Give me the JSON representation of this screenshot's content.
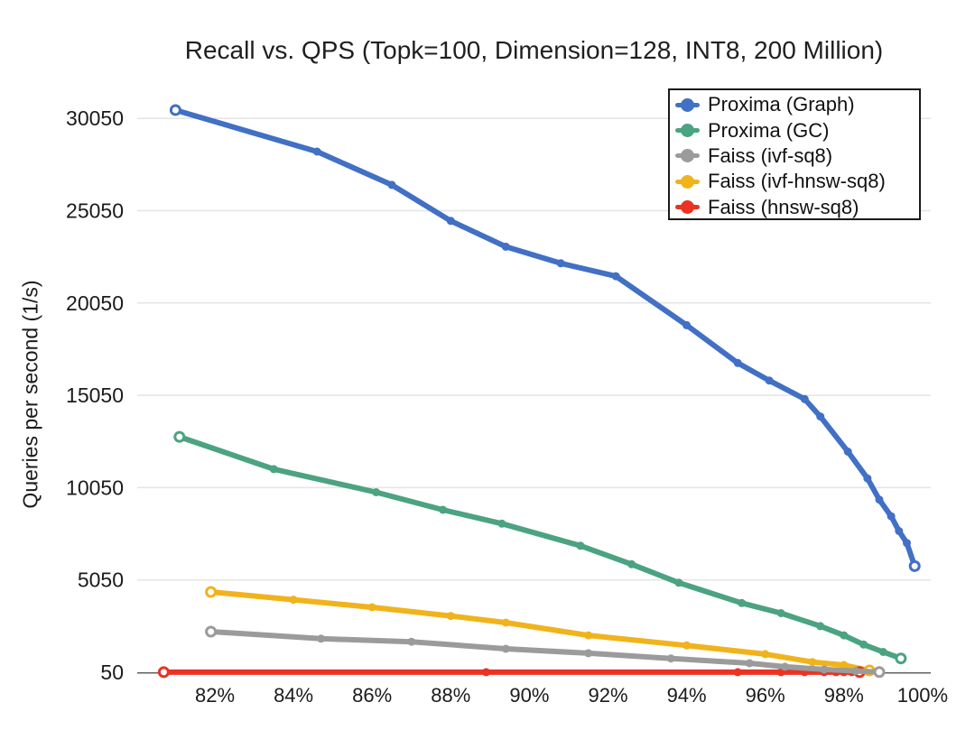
{
  "chart_data": {
    "type": "line",
    "title": "Recall vs. QPS (Topk=100, Dimension=128, INT8, 200 Million)",
    "xlabel": "",
    "ylabel": "Queries per second (1/s)",
    "x_tick_labels": [
      "82%",
      "84%",
      "86%",
      "88%",
      "90%",
      "92%",
      "94%",
      "96%",
      "98%",
      "100%"
    ],
    "x_tick_values": [
      82,
      84,
      86,
      88,
      90,
      92,
      94,
      96,
      98,
      100
    ],
    "y_tick_labels": [
      "50",
      "5050",
      "10050",
      "15050",
      "20050",
      "25050",
      "30050"
    ],
    "y_tick_values": [
      50,
      5050,
      10050,
      15050,
      20050,
      25050,
      30050
    ],
    "xlim": [
      80.1,
      100.2
    ],
    "ylim": [
      50,
      32050
    ],
    "grid": "horizontal",
    "legend_position": "top-right",
    "colors": {
      "grid": "#E4E4E4",
      "axis": "#606060",
      "text": "#1B1B1B"
    },
    "series": [
      {
        "name": "Proxima (Graph)",
        "color": "#4170C4",
        "points": [
          [
            81.0,
            30500
          ],
          [
            84.6,
            28250
          ],
          [
            86.5,
            26450
          ],
          [
            88.0,
            24500
          ],
          [
            89.4,
            23100
          ],
          [
            90.8,
            22200
          ],
          [
            92.2,
            21500
          ],
          [
            94.0,
            18850
          ],
          [
            95.3,
            16800
          ],
          [
            96.1,
            15850
          ],
          [
            97.0,
            14850
          ],
          [
            97.4,
            13900
          ],
          [
            98.1,
            12000
          ],
          [
            98.6,
            10550
          ],
          [
            98.9,
            9400
          ],
          [
            99.2,
            8500
          ],
          [
            99.4,
            7700
          ],
          [
            99.6,
            7050
          ],
          [
            99.8,
            5800
          ]
        ]
      },
      {
        "name": "Proxima (GC)",
        "color": "#4BA381",
        "points": [
          [
            81.1,
            12800
          ],
          [
            83.5,
            11050
          ],
          [
            86.1,
            9800
          ],
          [
            87.8,
            8850
          ],
          [
            89.3,
            8100
          ],
          [
            91.3,
            6900
          ],
          [
            92.6,
            5900
          ],
          [
            93.8,
            4900
          ],
          [
            95.4,
            3800
          ],
          [
            96.4,
            3250
          ],
          [
            97.4,
            2550
          ],
          [
            98.0,
            2050
          ],
          [
            98.5,
            1550
          ],
          [
            99.0,
            1150
          ],
          [
            99.45,
            800
          ]
        ]
      },
      {
        "name": "Faiss (ivf-sq8)",
        "color": "#9B9B9B",
        "points": [
          [
            81.9,
            2250
          ],
          [
            84.7,
            1870
          ],
          [
            87.0,
            1700
          ],
          [
            89.4,
            1320
          ],
          [
            91.5,
            1080
          ],
          [
            93.6,
            800
          ],
          [
            95.6,
            540
          ],
          [
            96.5,
            350
          ],
          [
            97.5,
            200
          ],
          [
            98.3,
            120
          ],
          [
            98.9,
            60
          ]
        ]
      },
      {
        "name": "Faiss (ivf-hnsw-sq8)",
        "color": "#F1B31C",
        "points": [
          [
            81.9,
            4400
          ],
          [
            84.0,
            3980
          ],
          [
            86.0,
            3570
          ],
          [
            88.0,
            3100
          ],
          [
            89.4,
            2740
          ],
          [
            91.5,
            2050
          ],
          [
            94.0,
            1500
          ],
          [
            96.0,
            1030
          ],
          [
            97.2,
            600
          ],
          [
            98.0,
            440
          ],
          [
            98.65,
            150
          ]
        ]
      },
      {
        "name": "Faiss (hnsw-sq8)",
        "color": "#EB3223",
        "points": [
          [
            80.7,
            55
          ],
          [
            88.9,
            55
          ],
          [
            95.3,
            55
          ],
          [
            96.4,
            55
          ],
          [
            97.0,
            55
          ],
          [
            97.5,
            55
          ],
          [
            97.8,
            55
          ],
          [
            98.0,
            55
          ],
          [
            98.2,
            55
          ],
          [
            98.4,
            55
          ]
        ]
      }
    ]
  }
}
